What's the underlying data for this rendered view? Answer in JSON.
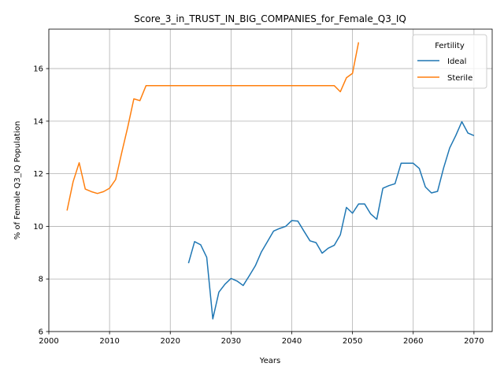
{
  "chart_data": {
    "type": "line",
    "title": "Score_3_in_TRUST_IN_BIG_COMPANIES_for_Female_Q3_IQ",
    "xlabel": "Years",
    "ylabel": "% of Female Q3_IQ Population",
    "xlim": [
      2000,
      2073
    ],
    "ylim": [
      6,
      17.5
    ],
    "xticks": [
      2000,
      2010,
      2020,
      2030,
      2040,
      2050,
      2060,
      2070
    ],
    "yticks": [
      6,
      8,
      10,
      12,
      14,
      16
    ],
    "grid": true,
    "legend": {
      "title": "Fertility",
      "placement": "top-right"
    },
    "series": [
      {
        "name": "Ideal",
        "color": "#1f77b4",
        "x": [
          2023,
          2024,
          2025,
          2026,
          2027,
          2028,
          2029,
          2030,
          2031,
          2032,
          2033,
          2034,
          2035,
          2036,
          2037,
          2038,
          2039,
          2040,
          2041,
          2042,
          2043,
          2044,
          2045,
          2046,
          2047,
          2048,
          2049,
          2050,
          2051,
          2052,
          2053,
          2054,
          2055,
          2056,
          2057,
          2058,
          2059,
          2060,
          2061,
          2062,
          2063,
          2064,
          2065,
          2066,
          2067,
          2068,
          2069,
          2070
        ],
        "values": [
          8.6,
          9.42,
          9.3,
          8.82,
          6.48,
          7.5,
          7.8,
          8.02,
          7.92,
          7.75,
          8.12,
          8.5,
          9.03,
          9.42,
          9.82,
          9.92,
          10.0,
          10.22,
          10.2,
          9.82,
          9.45,
          9.38,
          8.98,
          9.17,
          9.28,
          9.68,
          10.72,
          10.5,
          10.85,
          10.85,
          10.47,
          10.27,
          11.45,
          11.55,
          11.62,
          12.4,
          12.4,
          12.4,
          12.2,
          11.5,
          11.27,
          11.33,
          12.22,
          12.98,
          13.45,
          13.98,
          13.55,
          13.45
        ]
      },
      {
        "name": "Sterile",
        "color": "#ff7f0e",
        "x": [
          2003,
          2004,
          2005,
          2006,
          2007,
          2008,
          2009,
          2010,
          2011,
          2012,
          2013,
          2014,
          2015,
          2016,
          2017,
          2018,
          2019,
          2020,
          2021,
          2022,
          2023,
          2024,
          2025,
          2026,
          2027,
          2028,
          2029,
          2030,
          2031,
          2032,
          2033,
          2034,
          2035,
          2036,
          2037,
          2038,
          2039,
          2040,
          2041,
          2042,
          2043,
          2044,
          2045,
          2046,
          2047,
          2048,
          2049,
          2050,
          2051
        ],
        "values": [
          10.6,
          11.7,
          12.42,
          11.42,
          11.32,
          11.25,
          11.32,
          11.45,
          11.78,
          12.8,
          13.78,
          14.85,
          14.78,
          15.35,
          15.35,
          15.35,
          15.35,
          15.35,
          15.35,
          15.35,
          15.35,
          15.35,
          15.35,
          15.35,
          15.35,
          15.35,
          15.35,
          15.35,
          15.35,
          15.35,
          15.35,
          15.35,
          15.35,
          15.35,
          15.35,
          15.35,
          15.35,
          15.35,
          15.35,
          15.35,
          15.35,
          15.35,
          15.35,
          15.35,
          15.35,
          15.12,
          15.65,
          15.82,
          17.0
        ]
      }
    ]
  }
}
